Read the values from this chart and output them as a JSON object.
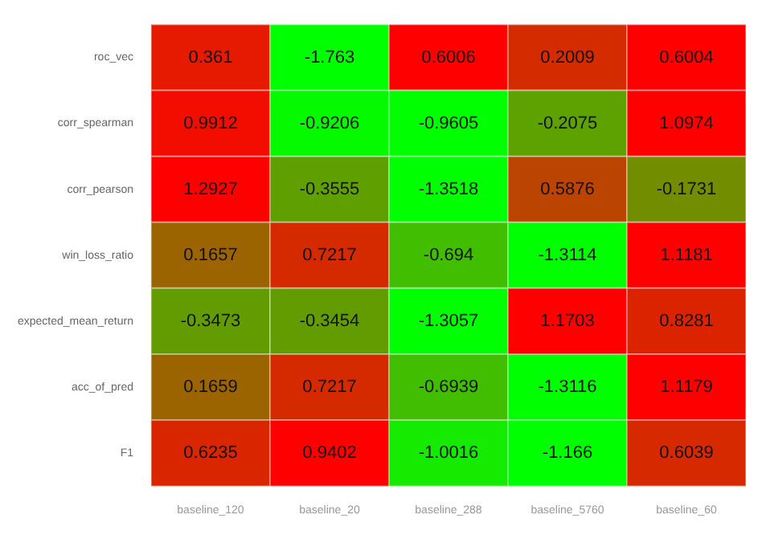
{
  "chart_data": {
    "type": "heatmap",
    "categories": [
      "baseline_120",
      "baseline_20",
      "baseline_288",
      "baseline_5760",
      "baseline_60"
    ],
    "y_categories": [
      "roc_vec",
      "corr_spearman",
      "corr_pearson",
      "win_loss_ratio",
      "expected_mean_return",
      "acc_of_pred",
      "F1"
    ],
    "cells": [
      [
        0.361,
        -1.763,
        0.6006,
        0.2009,
        0.6004
      ],
      [
        0.9912,
        -0.9206,
        -0.9605,
        -0.2075,
        1.0974
      ],
      [
        1.2927,
        -0.3555,
        -1.3518,
        0.5876,
        -0.1731
      ],
      [
        0.1657,
        0.7217,
        -0.694,
        -1.3114,
        1.1181
      ],
      [
        -0.3473,
        -0.3454,
        -1.3057,
        1.1703,
        0.8281
      ],
      [
        0.1659,
        0.7217,
        -0.6939,
        -1.3116,
        1.1179
      ],
      [
        0.6235,
        0.9402,
        -1.0016,
        -1.166,
        0.6039
      ]
    ],
    "data_labels": true
  }
}
